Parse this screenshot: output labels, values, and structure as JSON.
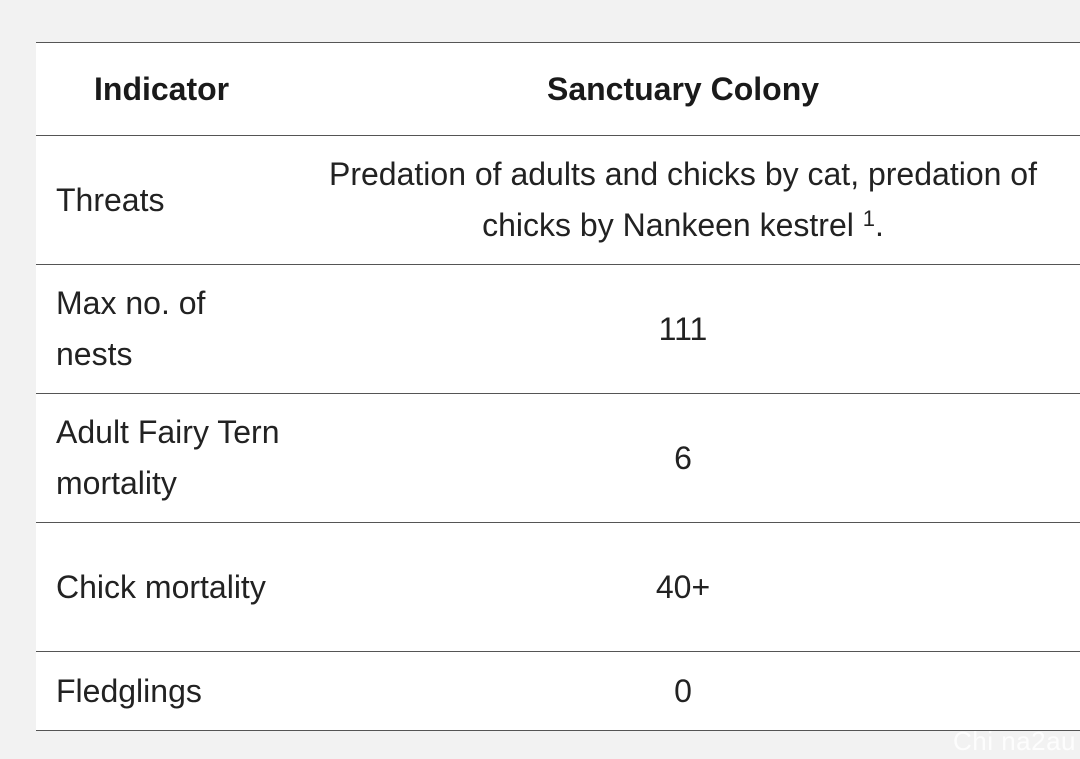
{
  "table": {
    "headers": {
      "indicator": "Indicator",
      "colony": "Sanctuary Colony"
    },
    "rows": [
      {
        "indicator": "Threats",
        "value": "Predation of adults and chicks by cat, predation of chicks by Nankeen kestrel",
        "footnote": "1",
        "suffix": "."
      },
      {
        "indicator": "Max no. of nests",
        "value": "111"
      },
      {
        "indicator": "Adult Fairy Tern mortality",
        "value": "6"
      },
      {
        "indicator": "Chick mortality",
        "value": "40+"
      },
      {
        "indicator": "Fledglings",
        "value": "0"
      }
    ]
  },
  "watermark": "Chi na2au"
}
